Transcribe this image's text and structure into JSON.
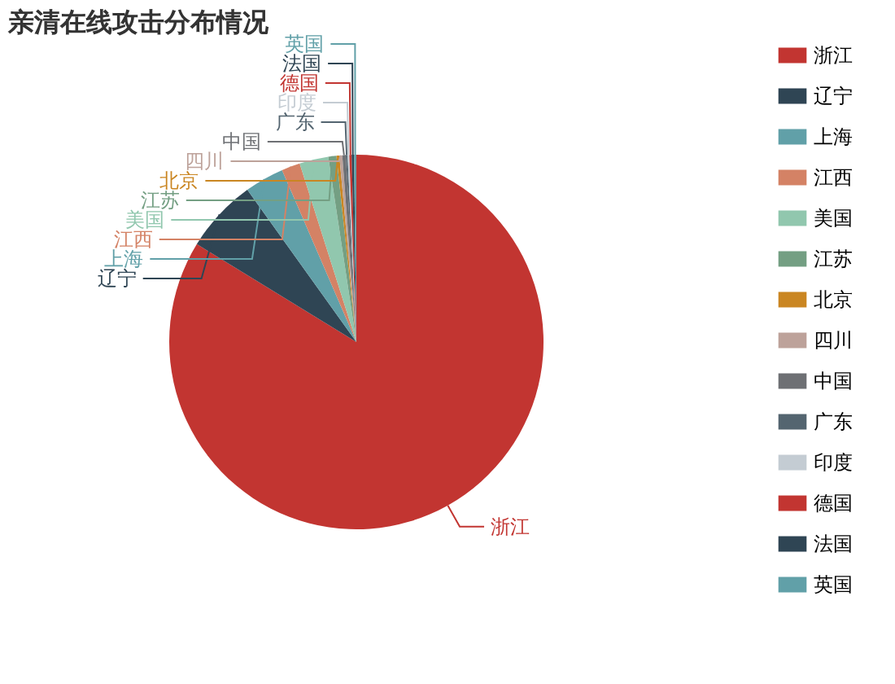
{
  "chart_data": {
    "type": "pie",
    "title": "亲清在线攻击分布情况",
    "categories": [
      "浙江",
      "辽宁",
      "上海",
      "江西",
      "美国",
      "江苏",
      "北京",
      "四川",
      "中国",
      "广东",
      "印度",
      "德国",
      "法国",
      "英国"
    ],
    "values": [
      83.75,
      6.35,
      3.4,
      1.6,
      2.5,
      0.7,
      0.25,
      0.25,
      0.3,
      0.15,
      0.15,
      0.2,
      0.2,
      0.2
    ],
    "colors": [
      "#c23531",
      "#2f4554",
      "#61a0a8",
      "#d48265",
      "#91c7ae",
      "#749f83",
      "#ca8622",
      "#bda29a",
      "#6e7074",
      "#546570",
      "#c4ccd3",
      "#c23531",
      "#2f4554",
      "#61a0a8"
    ],
    "legend": "top right"
  }
}
